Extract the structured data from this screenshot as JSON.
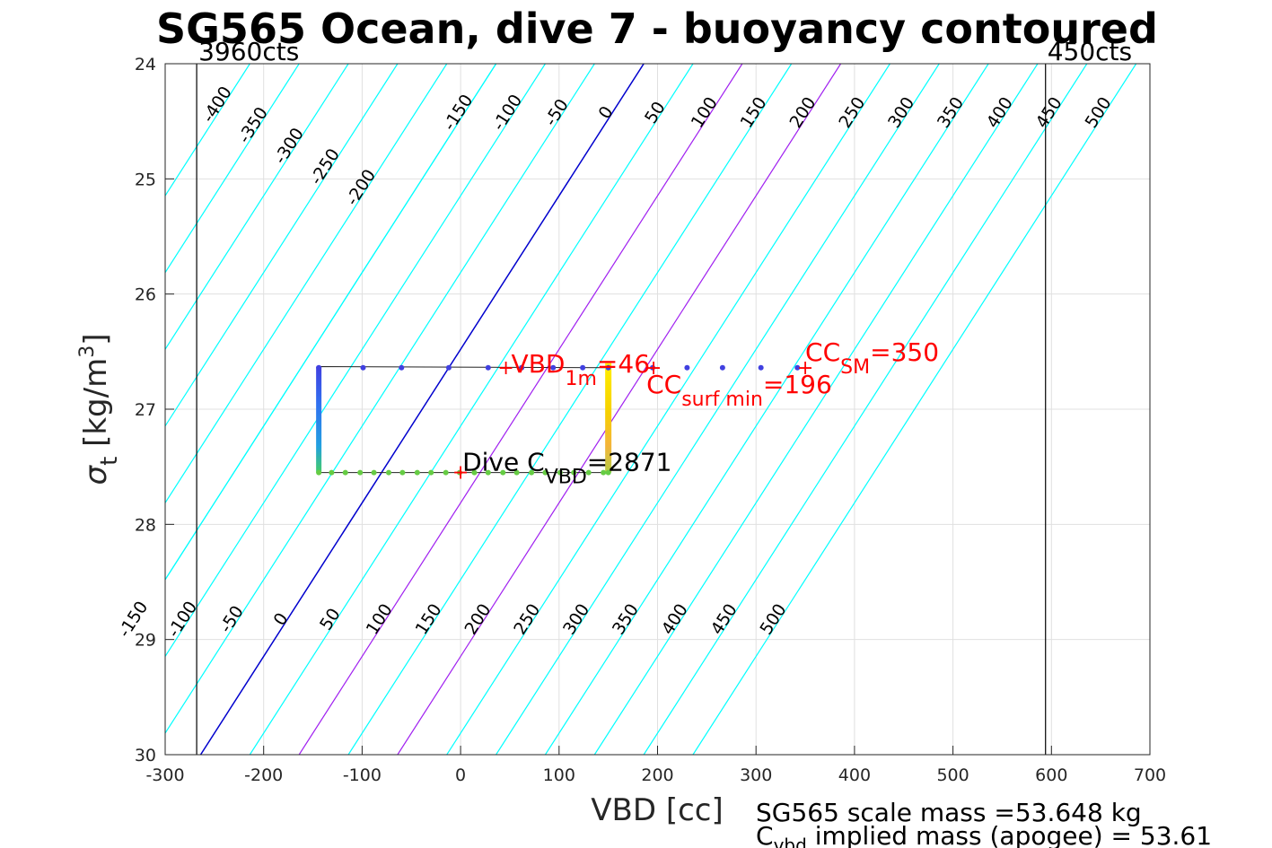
{
  "chart_data": {
    "type": "line",
    "title": "SG565 Ocean, dive 7 - buoyancy contoured",
    "xlabel": "VBD [cc]",
    "ylabel_main": "σ",
    "ylabel_sub": "t",
    "ylabel_rest": " [kg/m",
    "ylabel_sup": "3",
    "ylabel_close": "]",
    "xlim": [
      -300,
      700
    ],
    "ylim": [
      24,
      30
    ],
    "y_reversed": true,
    "grid": true,
    "xticks": [
      "-300",
      "-200",
      "-100",
      "0",
      "100",
      "200",
      "300",
      "400",
      "500",
      "600",
      "700"
    ],
    "yticks": [
      "24",
      "25",
      "26",
      "27",
      "28",
      "29",
      "30"
    ],
    "limit_lines": [
      {
        "x": -268,
        "label": "3960cts"
      },
      {
        "x": 594,
        "label": "450cts"
      }
    ],
    "contour_levels_cyan": [
      -400,
      -350,
      -300,
      -250,
      -200,
      -150,
      -100,
      -50,
      50,
      250,
      300,
      350,
      400,
      450,
      500
    ],
    "contour_levels_blue": [
      0
    ],
    "contour_levels_purple": [
      100,
      200
    ],
    "contour_slope_cc_per_sigma": 75,
    "contour_x_at_sigma24": {
      "-400": -214,
      "-350": -164,
      "-300": -114,
      "-250": -64,
      "-200": -14,
      "-150": 36,
      "-100": 86,
      "-50": 136,
      "0": 186,
      "50": 236,
      "100": 286,
      "150": 336,
      "200": 386,
      "250": 436,
      "300": 486,
      "350": 536,
      "400": 586,
      "450": 636,
      "500": 686
    },
    "contour_labels_top": [
      {
        "text": "-400",
        "level": -400
      },
      {
        "text": "-350",
        "level": -350
      },
      {
        "text": "-300",
        "level": -300
      },
      {
        "text": "-250",
        "level": -250
      },
      {
        "text": "-200",
        "level": -200
      },
      {
        "text": "-150",
        "level": -150
      },
      {
        "text": "-100",
        "level": -100
      },
      {
        "text": "-50",
        "level": -50
      },
      {
        "text": "0",
        "level": 0
      },
      {
        "text": "50",
        "level": 50
      },
      {
        "text": "100",
        "level": 100
      },
      {
        "text": "150",
        "level": 150
      },
      {
        "text": "200",
        "level": 200
      },
      {
        "text": "250",
        "level": 250
      },
      {
        "text": "300",
        "level": 300
      },
      {
        "text": "350",
        "level": 350
      },
      {
        "text": "400",
        "level": 400
      },
      {
        "text": "450",
        "level": 450
      },
      {
        "text": "500",
        "level": 500
      }
    ],
    "contour_labels_bottom": [
      {
        "text": "-150",
        "level": -150
      },
      {
        "text": "-100",
        "level": -100
      },
      {
        "text": "-50",
        "level": -50
      },
      {
        "text": "0",
        "level": 0
      },
      {
        "text": "50",
        "level": 50
      },
      {
        "text": "100",
        "level": 100
      },
      {
        "text": "150",
        "level": 150
      },
      {
        "text": "200",
        "level": 200
      },
      {
        "text": "250",
        "level": 250
      },
      {
        "text": "300",
        "level": 300
      },
      {
        "text": "350",
        "level": 350
      },
      {
        "text": "400",
        "level": 400
      },
      {
        "text": "450",
        "level": 450
      },
      {
        "text": "500",
        "level": 500
      }
    ],
    "dive_track": [
      {
        "x": -144,
        "y": 26.63
      },
      {
        "x": 150,
        "y": 26.64
      },
      {
        "x": 150,
        "y": 27.55
      },
      {
        "x": -144,
        "y": 27.55
      },
      {
        "x": -144,
        "y": 26.63
      }
    ],
    "descent_points_x": [
      -144,
      -99,
      -60,
      -12,
      28,
      62,
      94,
      124,
      150,
      195,
      230,
      266,
      305,
      342
    ],
    "descent_y": 26.64,
    "bottom_points_x": [
      -144,
      -131,
      -117,
      -102,
      -88,
      -73,
      -59,
      -44,
      -30,
      -15,
      -1,
      14,
      28,
      43,
      57,
      72,
      86,
      101,
      115,
      130,
      145,
      150
    ],
    "bottom_y": 27.55,
    "annotations": [
      {
        "name": "vbd-1m",
        "x": 46,
        "y": 26.64,
        "main": "VBD",
        "sub": "1m",
        "rest": "=46",
        "color": "#ff0000"
      },
      {
        "name": "cc-sm",
        "x": 350,
        "y": 26.64,
        "main": "CC",
        "sub": "SM",
        "rest": "=350",
        "color": "#ff0000"
      },
      {
        "name": "cc-surf-min",
        "x": 196,
        "y": 26.64,
        "main": "CC",
        "sub": "surf min",
        "rest": "=196",
        "color": "#ff0000"
      },
      {
        "name": "dive-c-vbd",
        "x": 0,
        "y": 27.55,
        "main": "Dive C",
        "sub": "VBD",
        "rest": "=2871",
        "color": "#000000"
      }
    ],
    "footer_line1": "SG565 scale mass =53.648 kg",
    "footer_line2_main": "C",
    "footer_line2_sub": "vbd",
    "footer_line2_rest": " implied mass (apogee) = 53.61",
    "colors": {
      "contour": "#00ffff",
      "zero_contour": "#0000cd",
      "purple_contour": "#a020f0",
      "descent": "#4040e0",
      "bottom": "#66cc44",
      "annotation": "#ff0000",
      "grid": "#e0e0e0"
    }
  }
}
